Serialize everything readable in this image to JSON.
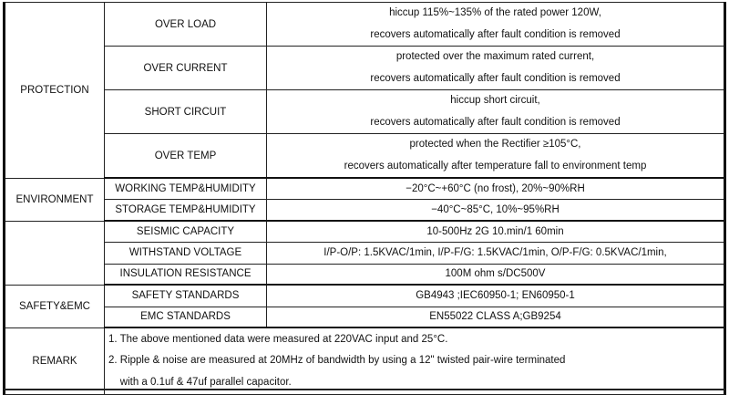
{
  "groups": {
    "protection": "PROTECTION",
    "environment": "ENVIRONMENT",
    "safety_emc": "SAFETY&EMC",
    "remark": "REMARK"
  },
  "rows": {
    "over_load": {
      "label": "OVER LOAD",
      "line1": "hiccup 115%~135% of the rated power 120W,",
      "line2": "recovers automatically after fault condition is removed"
    },
    "over_current": {
      "label": "OVER CURRENT",
      "line1": "protected over the maximum rated current,",
      "line2": "recovers automatically after fault condition is removed"
    },
    "short_circuit": {
      "label": "SHORT CIRCUIT",
      "line1": "hiccup short circuit,",
      "line2": "recovers automatically after fault condition is removed"
    },
    "over_temp": {
      "label": "OVER TEMP",
      "line1": "protected when the Rectifier ≥105°C,",
      "line2": "recovers automatically after temperature fall to environment temp"
    },
    "working_temp": {
      "label": "WORKING TEMP&HUMIDITY",
      "value": "−20°C~+60°C (no frost), 20%~90%RH"
    },
    "storage_temp": {
      "label": "STORAGE TEMP&HUMIDITY",
      "value": "−40°C~85°C, 10%~95%RH"
    },
    "seismic": {
      "label": "SEISMIC CAPACITY",
      "value": "10-500Hz  2G  10.min/1  60min"
    },
    "withstand": {
      "label": "WITHSTAND VOLTAGE",
      "value": "I/P-O/P: 1.5KVAC/1min,  I/P-F/G: 1.5KVAC/1min,  O/P-F/G: 0.5KVAC/1min,"
    },
    "insulation": {
      "label": "INSULATION RESISTANCE",
      "value": "100M ohm s/DC500V"
    },
    "safety_std": {
      "label": "SAFETY STANDARDS",
      "value": "GB4943 ;IEC60950-1; EN60950-1"
    },
    "emc_std": {
      "label": "EMC STANDARDS",
      "value": "EN55022  CLASS A;GB9254"
    }
  },
  "remarks": [
    "1. The above mentioned data were measured at 220VAC input and 25°C.",
    "2. Ripple & noise are measured at 20MHz of bandwidth by using a 12\" twisted pair-wire terminated",
    "    with a 0.1uf & 47uf parallel capacitor."
  ]
}
